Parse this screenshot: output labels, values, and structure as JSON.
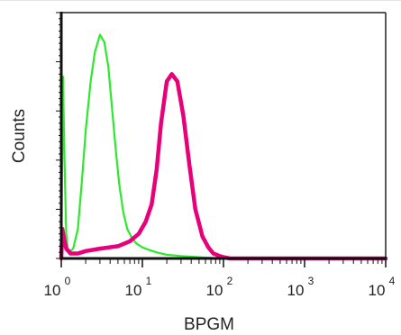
{
  "chart_data": {
    "type": "area",
    "xlabel": "BPGM",
    "ylabel": "Counts",
    "xscale": "log",
    "xlim": [
      1,
      10000
    ],
    "ylim": [
      0,
      1
    ],
    "grid": false,
    "x_ticks": [
      {
        "value": 1,
        "base": "10",
        "exp": "0"
      },
      {
        "value": 10,
        "base": "10",
        "exp": "1"
      },
      {
        "value": 100,
        "base": "10",
        "exp": "2"
      },
      {
        "value": 1000,
        "base": "10",
        "exp": "3"
      },
      {
        "value": 10000,
        "base": "10",
        "exp": "4"
      }
    ],
    "series": [
      {
        "color": "#2ee82e",
        "x": [
          1.0,
          1.05,
          1.1,
          1.15,
          1.2,
          1.3,
          1.4,
          1.6,
          1.8,
          2.0,
          2.3,
          2.6,
          3.0,
          3.4,
          3.8,
          4.2,
          4.7,
          5.2,
          5.8,
          6.5,
          7.5,
          8.5,
          10,
          12,
          15,
          20,
          30,
          50,
          100,
          10000
        ],
        "y": [
          0.0,
          0.74,
          0.38,
          0.1,
          0.04,
          0.03,
          0.04,
          0.12,
          0.32,
          0.52,
          0.72,
          0.84,
          0.91,
          0.88,
          0.78,
          0.62,
          0.44,
          0.3,
          0.19,
          0.12,
          0.08,
          0.06,
          0.045,
          0.035,
          0.025,
          0.015,
          0.01,
          0.005,
          0.0,
          0.0
        ]
      },
      {
        "color": "#e8007a",
        "x": [
          1.0,
          1.03,
          1.08,
          1.15,
          1.3,
          1.6,
          2.0,
          3.0,
          5.0,
          7.0,
          9.0,
          11,
          13,
          15,
          17,
          20,
          23,
          27,
          32,
          38,
          45,
          55,
          65,
          75,
          90,
          100,
          120,
          10000
        ],
        "y": [
          0.0,
          0.12,
          0.08,
          0.04,
          0.02,
          0.02,
          0.03,
          0.04,
          0.05,
          0.07,
          0.1,
          0.15,
          0.22,
          0.36,
          0.55,
          0.72,
          0.75,
          0.72,
          0.58,
          0.38,
          0.2,
          0.09,
          0.045,
          0.02,
          0.01,
          0.005,
          0.0,
          0.0
        ]
      }
    ]
  }
}
